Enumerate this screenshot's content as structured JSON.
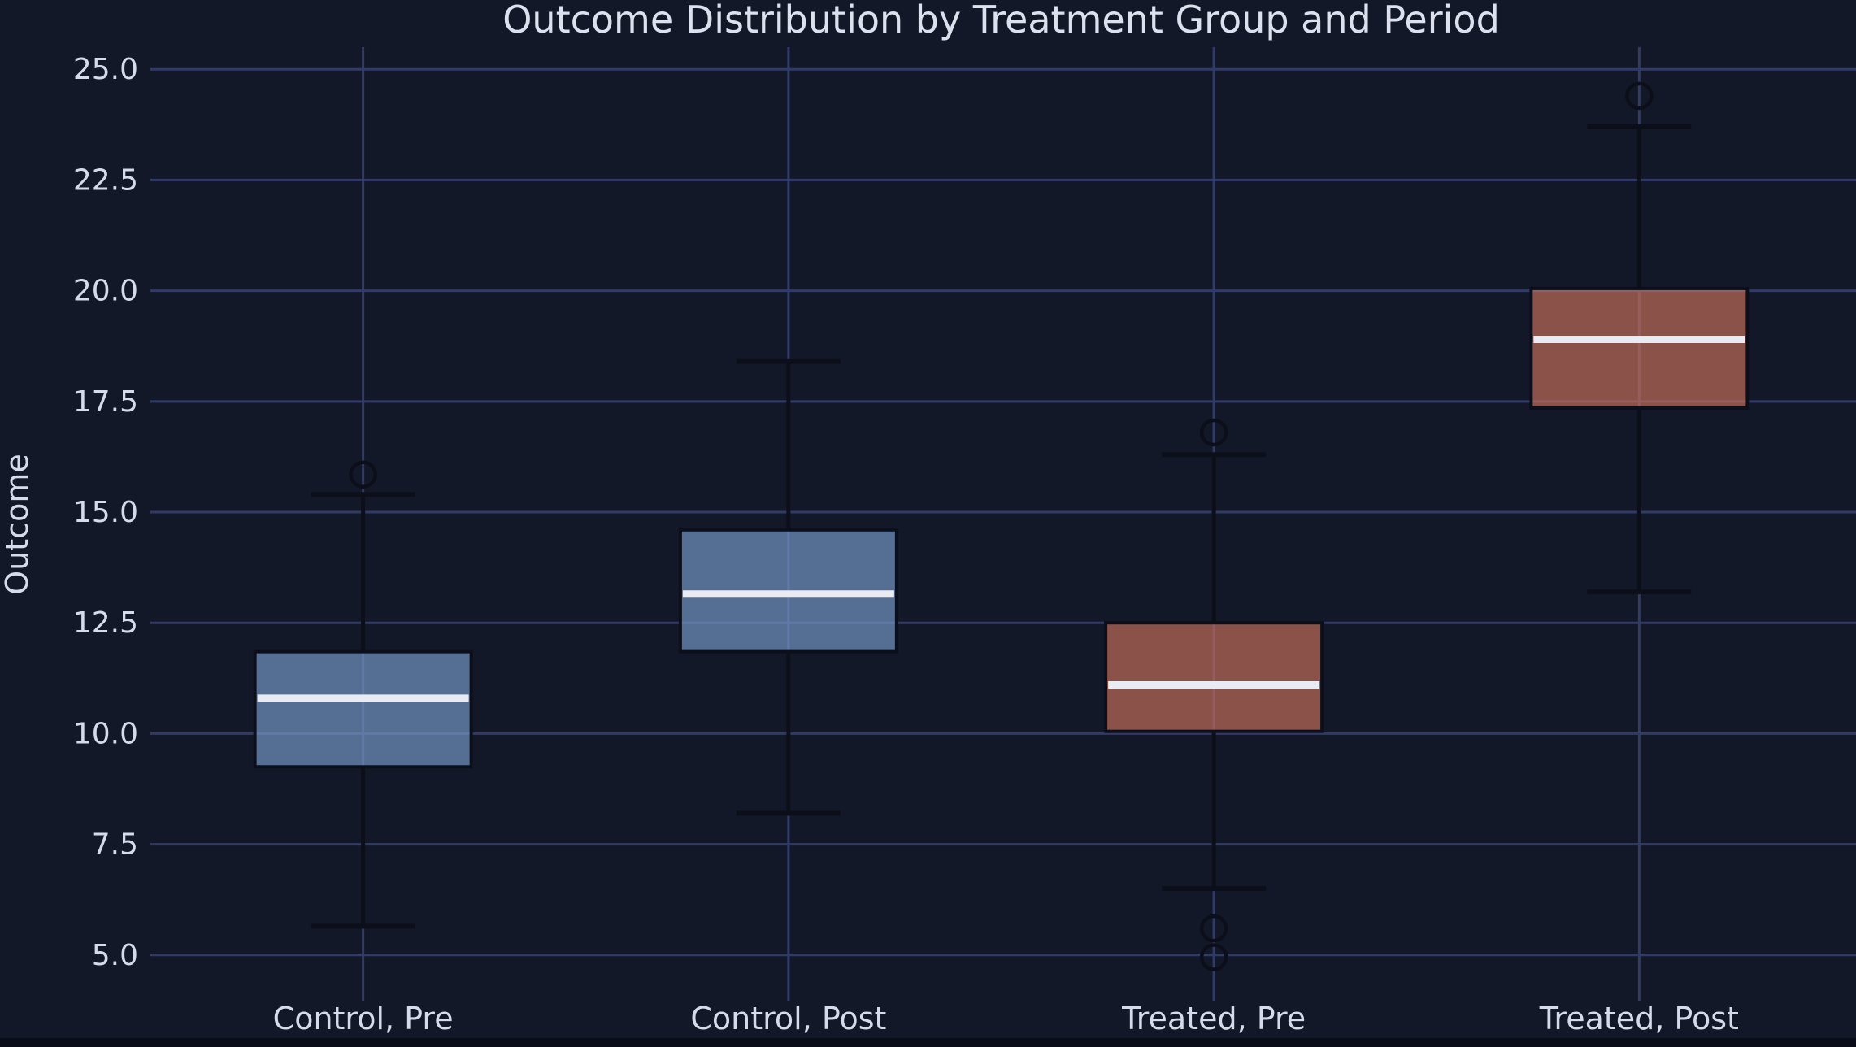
{
  "figure": {
    "title": "Outcome Distribution by Treatment Group and Period",
    "ylabel": "Outcome",
    "colors": {
      "background": "#131829",
      "grid": "#323b68",
      "text": "#d6dbe9",
      "title_text": "#dde1ee",
      "box_edge": "#0c0f1a",
      "median": "#e9ebf4",
      "bottom_strip": "#0a0d17",
      "control_fill": "rgba(116,152,198,0.68)",
      "treated_fill": "rgba(196,110,88,0.68)"
    }
  },
  "chart_data": {
    "type": "boxplot",
    "title": "Outcome Distribution by Treatment Group and Period",
    "xlabel": "",
    "ylabel": "Outcome",
    "grid": true,
    "legend": "none",
    "ylim": [
      3.95,
      25.5
    ],
    "y_ticks": [
      25.0,
      22.5,
      20.0,
      17.5,
      15.0,
      12.5,
      10.0,
      7.5,
      5.0
    ],
    "categories": [
      "Control, Pre",
      "Control, Post",
      "Treated, Pre",
      "Treated, Post"
    ],
    "series": [
      {
        "label": "Control, Pre",
        "group": "control",
        "whisker_low": 5.65,
        "q1": 9.25,
        "median": 10.8,
        "q3": 11.85,
        "whisker_high": 15.4,
        "outliers": [
          15.85
        ]
      },
      {
        "label": "Control, Post",
        "group": "control",
        "whisker_low": 8.2,
        "q1": 11.85,
        "median": 13.15,
        "q3": 14.6,
        "whisker_high": 18.4,
        "outliers": []
      },
      {
        "label": "Treated, Pre",
        "group": "treated",
        "whisker_low": 6.5,
        "q1": 10.05,
        "median": 11.1,
        "q3": 12.5,
        "whisker_high": 16.3,
        "outliers": [
          16.8,
          5.6,
          4.95
        ]
      },
      {
        "label": "Treated, Post",
        "group": "treated",
        "whisker_low": 13.2,
        "q1": 17.35,
        "median": 18.9,
        "q3": 20.05,
        "whisker_high": 23.7,
        "outliers": [
          24.4
        ]
      }
    ]
  }
}
